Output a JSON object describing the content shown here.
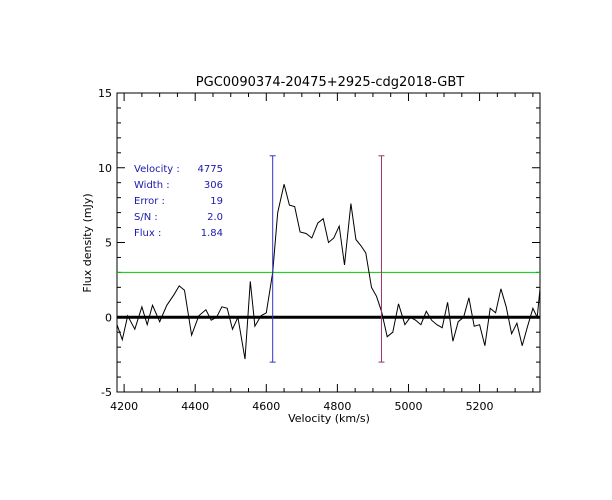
{
  "chart_data": {
    "type": "line",
    "title": "PGC0090374-20475+2925-cdg2018-GBT",
    "xlabel": "Velocity (km/s)",
    "ylabel": "Flux density (mJy)",
    "xlim": [
      4180,
      5370
    ],
    "ylim": [
      -5,
      15
    ],
    "xticks": [
      4200,
      4400,
      4600,
      4800,
      5000,
      5200
    ],
    "yticks": [
      -5,
      0,
      5,
      10,
      15
    ],
    "series": [
      {
        "name": "spectrum",
        "color": "#000000",
        "x": [
          4180,
          4195,
          4210,
          4230,
          4250,
          4265,
          4280,
          4300,
          4320,
          4340,
          4355,
          4370,
          4390,
          4410,
          4430,
          4445,
          4460,
          4475,
          4490,
          4505,
          4520,
          4540,
          4555,
          4568,
          4585,
          4600,
          4618,
          4632,
          4650,
          4665,
          4680,
          4695,
          4712,
          4728,
          4745,
          4760,
          4775,
          4790,
          4805,
          4820,
          4838,
          4852,
          4866,
          4880,
          4896,
          4910,
          4924,
          4940,
          4956,
          4972,
          4990,
          5005,
          5020,
          5035,
          5050,
          5065,
          5080,
          5095,
          5110,
          5125,
          5140,
          5155,
          5170,
          5185,
          5200,
          5215,
          5230,
          5245,
          5260,
          5275,
          5290,
          5305,
          5320,
          5335,
          5350,
          5362,
          5370
        ],
        "y": [
          -0.5,
          -1.5,
          0.1,
          -0.8,
          0.7,
          -0.5,
          0.8,
          -0.3,
          0.8,
          1.5,
          2.1,
          1.8,
          -1.2,
          0.1,
          0.5,
          -0.2,
          0.0,
          0.7,
          0.6,
          -0.8,
          0.0,
          -2.8,
          2.4,
          -0.6,
          0.1,
          0.3,
          3.0,
          7.0,
          8.9,
          7.5,
          7.4,
          5.7,
          5.6,
          5.3,
          6.3,
          6.6,
          5.0,
          5.3,
          6.1,
          3.5,
          7.6,
          5.2,
          4.8,
          4.3,
          2.0,
          1.4,
          0.4,
          -1.3,
          -1.0,
          0.9,
          -0.5,
          0.0,
          -0.2,
          -0.5,
          0.4,
          -0.2,
          -0.5,
          -0.7,
          1.0,
          -1.6,
          -0.3,
          0.0,
          1.3,
          -0.6,
          -0.5,
          -1.9,
          0.6,
          0.3,
          1.9,
          0.7,
          -1.1,
          -0.4,
          -1.9,
          -0.6,
          0.6,
          0.0,
          1.9
        ]
      }
    ],
    "threshold_line": {
      "y": 3.0,
      "color": "#00cc00"
    },
    "zero_line": {
      "y": 0,
      "color": "#000000"
    },
    "markers": [
      {
        "x": 4618,
        "ymin": -3.0,
        "ymax": 10.8,
        "color": "#3333cc"
      },
      {
        "x": 4924,
        "ymin": -3.0,
        "ymax": 10.8,
        "color": "#993366"
      }
    ],
    "annotations": [
      {
        "label": "Velocity :",
        "value": "4775"
      },
      {
        "label": "Width :",
        "value": "306"
      },
      {
        "label": "Error :",
        "value": "19"
      },
      {
        "label": "S/N :",
        "value": "2.0"
      },
      {
        "label": "Flux :",
        "value": "1.84"
      }
    ],
    "annotation_color": "#1a1aaa"
  }
}
